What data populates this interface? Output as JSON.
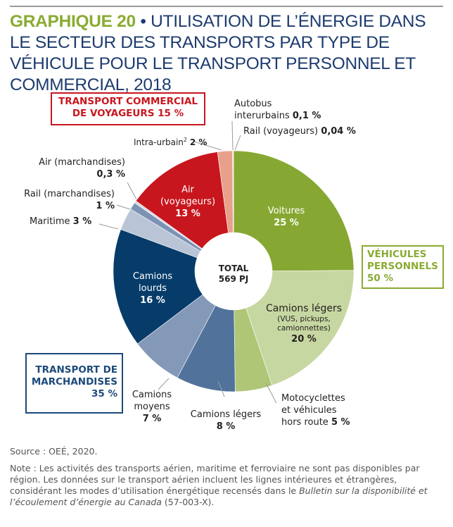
{
  "title": {
    "number": "GRAPHIQUE 20",
    "bullet": " • ",
    "text": "UTILISATION DE L’ÉNERGIE DANS LE SECTEUR DES TRANSPORTS PAR TYPE DE VÉHICULE POUR LE TRANSPORT PERSONNEL ET COMMERCIAL, 2018"
  },
  "chart_data": {
    "type": "pie",
    "variant": "donut",
    "center_label": {
      "line1": "TOTAL",
      "line2": "569 PJ"
    },
    "slices": [
      {
        "name": "Voitures",
        "value": 25,
        "label": "25 %",
        "color": "#86a832",
        "group": "personal"
      },
      {
        "name": "Camions légers",
        "sub": "(VUS, pickups, camionnettes)",
        "value": 20,
        "label": "20 %",
        "color": "#c7d7a1",
        "group": "personal"
      },
      {
        "name": "Motocyclettes et véhicules hors route",
        "value": 5,
        "label": "5 %",
        "color": "#afc677",
        "group": "personal"
      },
      {
        "name": "Camions légers",
        "value": 8,
        "label": "8 %",
        "color": "#51729b",
        "group": "freight"
      },
      {
        "name": "Camions moyens",
        "value": 7,
        "label": "7 %",
        "color": "#8499b8",
        "group": "freight"
      },
      {
        "name": "Camions lourds",
        "value": 16,
        "label": "16 %",
        "color": "#073c6a",
        "group": "freight"
      },
      {
        "name": "Maritime",
        "value": 3,
        "label": "3 %",
        "color": "#b9c5d7",
        "group": "freight"
      },
      {
        "name": "Rail (marchandises)",
        "value": 1,
        "label": "1 %",
        "color": "#7d93b5",
        "group": "freight"
      },
      {
        "name": "Air (marchandises)",
        "value": 0.3,
        "label": "0,3 %",
        "color": "#d3dbe6",
        "group": "freight"
      },
      {
        "name": "Air (voyageurs)",
        "value": 13,
        "label": "13 %",
        "color": "#c8161e",
        "group": "commercial-passenger"
      },
      {
        "name": "Intra-urbain",
        "value": 2,
        "label": "2 %",
        "color": "#e9a08b",
        "group": "commercial-passenger"
      },
      {
        "name": "Autobus interurbains",
        "value": 0.1,
        "label": "0,1 %",
        "color": "#d98a70",
        "group": "commercial-passenger"
      },
      {
        "name": "Rail (voyageurs)",
        "value": 0.04,
        "label": "0,04 %",
        "color": "#b45a4a",
        "group": "commercial-passenger"
      }
    ],
    "groups": [
      {
        "id": "personal",
        "line1": "VÉHICULES",
        "line2": "PERSONNELS",
        "line3": "50 %",
        "color": "#8aab32"
      },
      {
        "id": "freight",
        "line1": "TRANSPORT DE",
        "line2": "MARCHANDISES",
        "line3": "35 %",
        "color": "#1d4a7a"
      },
      {
        "id": "commercial-passenger",
        "line1": "TRANSPORT COMMERCIAL",
        "line2": "DE VOYAGEURS 15 %",
        "color": "#c8161e"
      }
    ]
  },
  "labels": {
    "voitures": {
      "name": "Voitures",
      "pct": "25 %"
    },
    "camions_legers_perso": {
      "name": "Camions légers",
      "sub1": "(VUS, pickups,",
      "sub2": "camionnettes)",
      "pct": "20 %"
    },
    "moto": {
      "line1": "Motocyclettes",
      "line2": "et véhicules",
      "line3": "hors route",
      "pct": "5 %"
    },
    "camions_legers_march": {
      "name": "Camions légers",
      "pct": "8 %"
    },
    "camions_moyens": {
      "line1": "Camions",
      "line2": "moyens",
      "pct": "7 %"
    },
    "camions_lourds": {
      "line1": "Camions",
      "line2": "lourds",
      "pct": "16 %"
    },
    "maritime": {
      "name": "Maritime",
      "pct": "3 %"
    },
    "rail_march": {
      "name": "Rail (marchandises)",
      "pct": "1 %"
    },
    "air_march": {
      "name": "Air (marchandises)",
      "pct": "0,3 %"
    },
    "air_voy": {
      "line1": "Air",
      "line2": "(voyageurs)",
      "pct": "13 %"
    },
    "intra": {
      "name": "Intra-urbain",
      "sup": "2",
      "pct": "2 %"
    },
    "autobus": {
      "line1": "Autobus",
      "line2": "interurbains",
      "pct": "0,1 %"
    },
    "rail_voy": {
      "name": "Rail (voyageurs)",
      "pct": "0,04 %"
    }
  },
  "source": "Source : OEÉ, 2020.",
  "note": {
    "text1": "Note : Les activités des transports aérien, maritime et ferroviaire ne sont pas disponibles par région. Les données sur le transport aérien incluent les lignes intérieures et étrangères, considérant les modes d’utilisation énergétique recensés dans le ",
    "italic1": "Bulletin sur la disponibilité et l’écoulement d’énergie au Canada",
    "text2": " (57-003-X)."
  }
}
